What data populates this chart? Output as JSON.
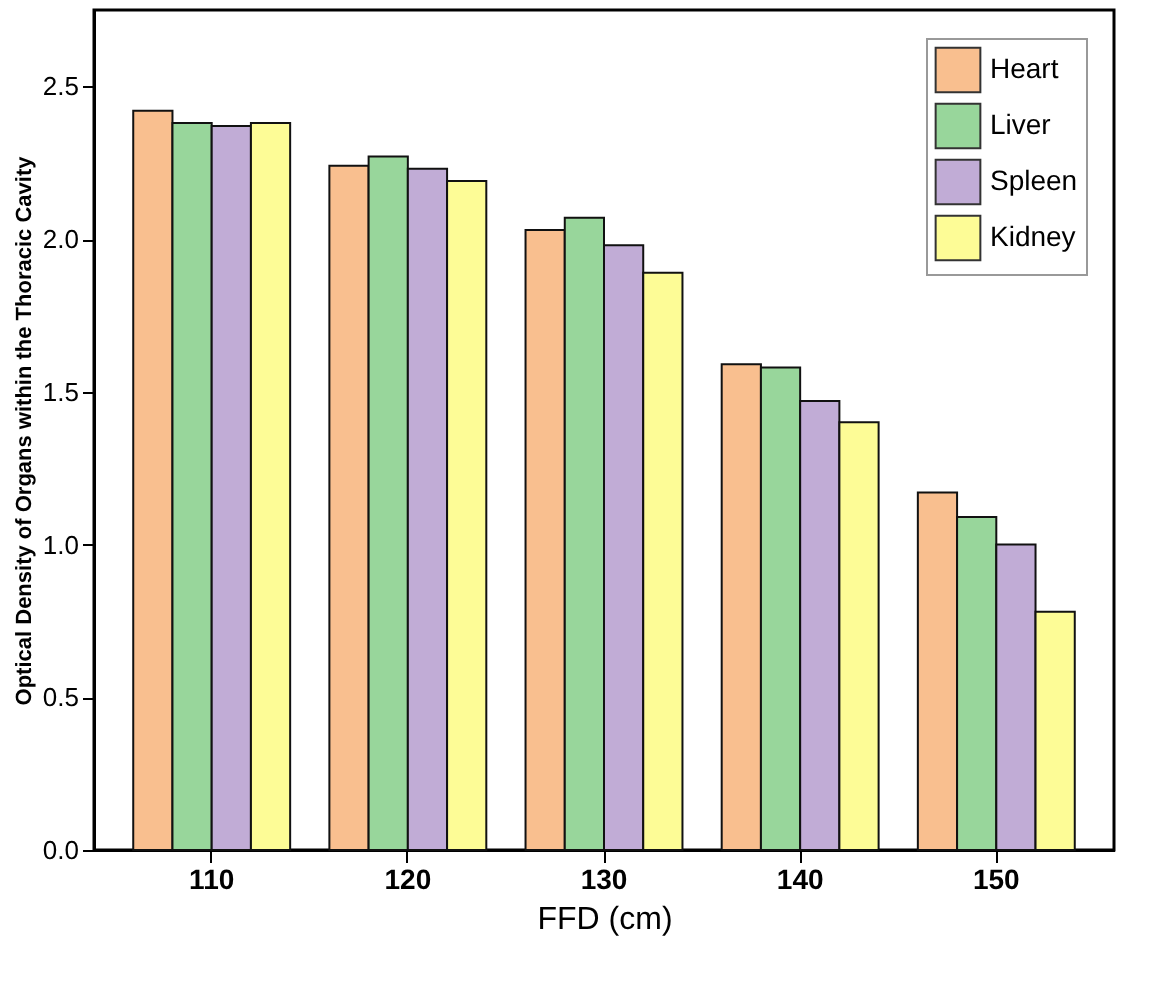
{
  "chart_data": {
    "type": "bar",
    "xlabel": "FFD (cm)",
    "ylabel": "Optical Density of Organs within the Thoracic Cavity",
    "categories": [
      "110",
      "120",
      "130",
      "140",
      "150"
    ],
    "series": [
      {
        "name": "Heart",
        "color": "#f9bf8f",
        "values": [
          2.42,
          2.24,
          2.03,
          1.59,
          1.17
        ]
      },
      {
        "name": "Liver",
        "color": "#98d69b",
        "values": [
          2.38,
          2.27,
          2.07,
          1.58,
          1.09
        ]
      },
      {
        "name": "Spleen",
        "color": "#c1acd6",
        "values": [
          2.37,
          2.23,
          1.98,
          1.47,
          1.0
        ]
      },
      {
        "name": "Kidney",
        "color": "#fdfc96",
        "values": [
          2.38,
          2.19,
          1.89,
          1.4,
          0.78
        ]
      }
    ],
    "ylim": [
      0,
      2.75
    ],
    "yticks": [
      {
        "value": 0,
        "label": "0.0"
      },
      {
        "value": 0.5,
        "label": "0.5"
      },
      {
        "value": 1,
        "label": "1.0"
      },
      {
        "value": 1.5,
        "label": "1.5"
      },
      {
        "value": 2,
        "label": "2.0"
      },
      {
        "value": 2.5,
        "label": "2.5"
      }
    ],
    "legend": "top right",
    "grid": false
  }
}
